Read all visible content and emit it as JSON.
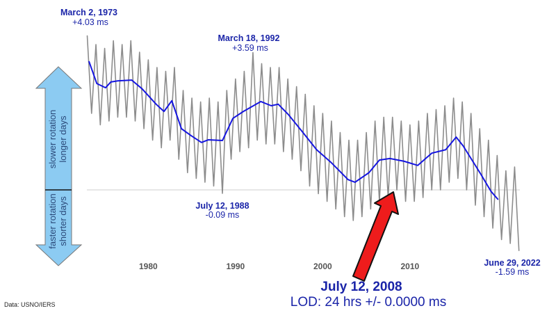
{
  "chart_data": {
    "type": "line",
    "title": "",
    "xlabel": "",
    "ylabel": "",
    "xlim": [
      1973,
      2022.5
    ],
    "ylim": [
      -1.8,
      4.2
    ],
    "x_ticks": [
      "1980",
      "1990",
      "2000",
      "2010"
    ],
    "x_tick_values": [
      1980,
      1990,
      2000,
      2010
    ],
    "grid": false,
    "zero_line": true,
    "source": "Data: USNO/IERS",
    "colors": {
      "raw": "#8c8c8c",
      "smoothed": "#1515e0",
      "annotation": "#1a24a8",
      "pointer_arrow": "#ee1c1c",
      "scale_arrow": "#8ccbf2"
    },
    "series": [
      {
        "key": "raw",
        "x": [
          1973,
          1973.5,
          1974,
          1974.5,
          1975,
          1975.5,
          1976,
          1976.5,
          1977,
          1977.5,
          1978,
          1978.5,
          1979,
          1979.5,
          1980,
          1980.5,
          1981,
          1981.5,
          1982,
          1982.5,
          1983,
          1983.5,
          1984,
          1984.5,
          1985,
          1985.5,
          1986,
          1986.5,
          1987,
          1987.5,
          1988,
          1988.5,
          1989,
          1989.5,
          1990,
          1990.5,
          1991,
          1991.5,
          1992,
          1992.5,
          1993,
          1993.5,
          1994,
          1994.5,
          1995,
          1995.5,
          1996,
          1996.5,
          1997,
          1997.5,
          1998,
          1998.5,
          1999,
          1999.5,
          2000,
          2000.5,
          2001,
          2001.5,
          2002,
          2002.5,
          2003,
          2003.5,
          2004,
          2004.5,
          2005,
          2005.5,
          2006,
          2006.5,
          2007,
          2007.5,
          2008,
          2008.5,
          2009,
          2009.5,
          2010,
          2010.5,
          2011,
          2011.5,
          2012,
          2012.5,
          2013,
          2013.5,
          2014,
          2014.5,
          2015,
          2015.5,
          2016,
          2016.5,
          2017,
          2017.5,
          2018,
          2018.5,
          2019,
          2019.5,
          2020,
          2020.5,
          2021,
          2021.5,
          2022,
          2022.5
        ],
        "values": [
          4.03,
          2.0,
          3.8,
          1.7,
          3.7,
          1.8,
          3.9,
          1.9,
          3.8,
          1.9,
          3.9,
          1.8,
          3.6,
          1.6,
          3.4,
          1.3,
          3.2,
          1.1,
          3.1,
          1.3,
          3.2,
          0.8,
          2.6,
          0.45,
          2.4,
          0.3,
          2.3,
          0.2,
          2.4,
          0.1,
          2.3,
          -0.09,
          2.6,
          0.8,
          2.9,
          1.0,
          3.1,
          1.1,
          3.59,
          1.3,
          3.3,
          1.2,
          3.2,
          1.2,
          3.2,
          1.0,
          2.9,
          0.8,
          2.7,
          0.5,
          2.5,
          0.1,
          2.2,
          -0.1,
          2.0,
          -0.3,
          1.8,
          -0.5,
          1.5,
          -0.7,
          1.3,
          -0.8,
          1.3,
          -0.7,
          1.5,
          -0.5,
          1.8,
          -0.3,
          1.9,
          -0.2,
          1.9,
          0.0,
          1.8,
          -0.3,
          1.7,
          -0.3,
          1.8,
          -0.2,
          2.0,
          0.0,
          2.1,
          0.0,
          2.2,
          0.2,
          2.4,
          0.3,
          2.3,
          0.0,
          2.0,
          -0.4,
          1.6,
          -0.7,
          1.3,
          -1.0,
          0.9,
          -1.3,
          0.5,
          -1.4,
          0.6,
          -1.59
        ]
      },
      {
        "key": "smoothed",
        "x": [
          1973.2,
          1974.1,
          1975.1,
          1975.7,
          1976.5,
          1978.1,
          1979.3,
          1980.9,
          1981.8,
          1982.7,
          1983.8,
          1984.9,
          1986.1,
          1986.9,
          1988.5,
          1989.7,
          1990.9,
          1992.9,
          1994.1,
          1994.9,
          1996.1,
          1997.7,
          1999.3,
          2000.9,
          2002.9,
          2003.7,
          2005.3,
          2006.5,
          2007.7,
          2009.3,
          2010.9,
          2012.5,
          2014.1,
          2015.3,
          2016.1,
          2018.1,
          2019.3,
          2020.1
        ],
        "values": [
          3.36,
          2.78,
          2.67,
          2.82,
          2.85,
          2.87,
          2.64,
          2.24,
          2.05,
          2.33,
          1.6,
          1.42,
          1.24,
          1.31,
          1.29,
          1.87,
          2.05,
          2.31,
          2.2,
          2.24,
          1.96,
          1.51,
          1.05,
          0.73,
          0.27,
          0.2,
          0.45,
          0.78,
          0.82,
          0.75,
          0.64,
          0.96,
          1.05,
          1.38,
          1.15,
          0.42,
          -0.04,
          -0.25
        ]
      }
    ],
    "annotations": [
      {
        "date": "March 2, 1973",
        "value": "+4.03 ms"
      },
      {
        "date": "March 18, 1992",
        "value": "+3.59 ms"
      },
      {
        "date": "July 12, 1988",
        "value": "-0.09 ms"
      },
      {
        "date": "June 29, 2022",
        "value": "-1.59 ms"
      },
      {
        "date": "July 12, 2008",
        "value": "LOD: 24 hrs +/- 0.0000 ms"
      }
    ],
    "scale_arrow": {
      "up_line1": "slower rotation",
      "up_line2": "longer days",
      "down_line1": "faster rotation",
      "down_line2": "shorter days"
    }
  }
}
